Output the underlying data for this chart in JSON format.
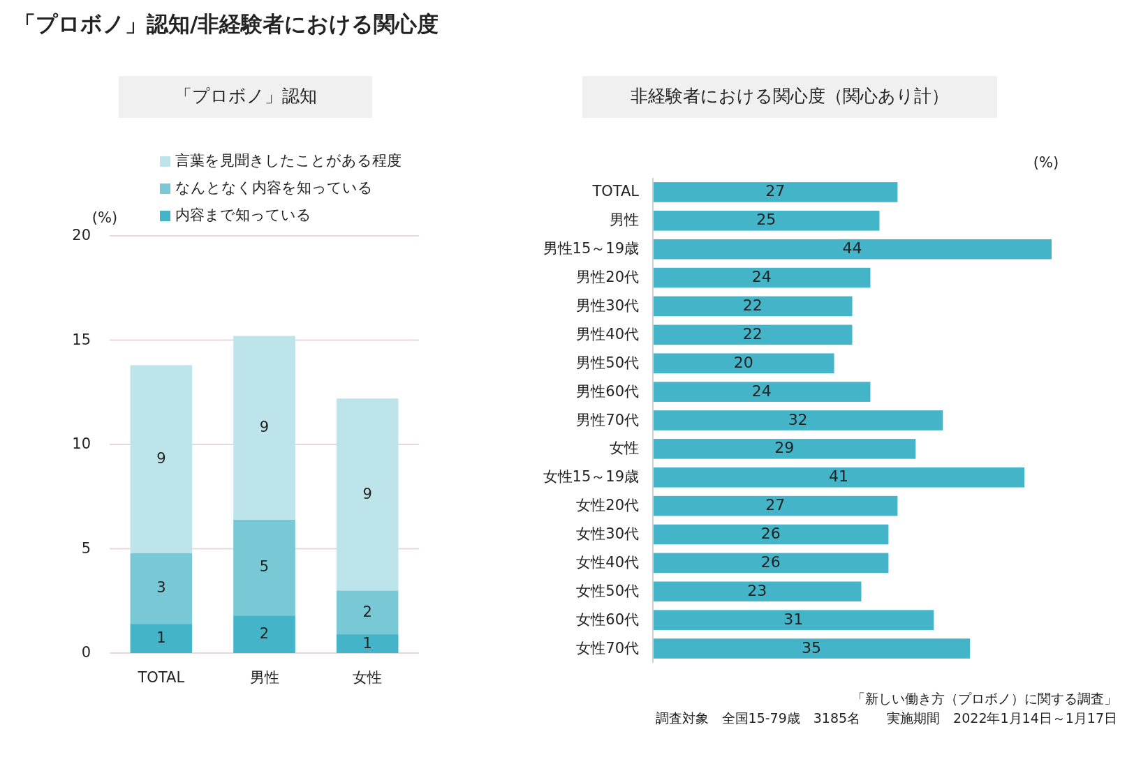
{
  "chart_data": [
    {
      "type": "bar",
      "title": "「プロボノ」認知",
      "ylabel": "(%)",
      "categories": [
        "TOTAL",
        "男性",
        "女性"
      ],
      "stacked": true,
      "ylim": [
        0,
        20
      ],
      "yticks": [
        0,
        5,
        10,
        15,
        20
      ],
      "grid": "y",
      "legend": "top",
      "annotations": [
        "「プロボノ」認知/非経験者における関心度"
      ],
      "series": [
        {
          "name": "内容まで知っている",
          "color": "#44b4c8",
          "values": [
            1.4,
            1.8,
            0.9
          ],
          "value_labels": [
            "1",
            "2",
            "1"
          ]
        },
        {
          "name": "なんとなく内容を知っている",
          "color": "#78c8d6",
          "values": [
            3.4,
            4.6,
            2.1
          ],
          "value_labels": [
            "3",
            "5",
            "2"
          ]
        },
        {
          "name": "言葉を見聞きしたことがある程度",
          "color": "#bde3eb",
          "values": [
            9.0,
            8.8,
            9.2
          ],
          "value_labels": [
            "9",
            "9",
            "9"
          ]
        }
      ]
    },
    {
      "type": "bar",
      "title": "非経験者における関心度（関心あり計）",
      "xlabel": "(%)",
      "orientation": "horizontal",
      "data_labels": true,
      "color": "#44b4c8",
      "categories": [
        "TOTAL",
        "男性",
        "男性15～19歳",
        "男性20代",
        "男性30代",
        "男性40代",
        "男性50代",
        "男性60代",
        "男性70代",
        "女性",
        "女性15～19歳",
        "女性20代",
        "女性30代",
        "女性40代",
        "女性50代",
        "女性60代",
        "女性70代"
      ],
      "values": [
        27,
        25,
        44,
        24,
        22,
        22,
        20,
        24,
        32,
        29,
        41,
        27,
        26,
        26,
        23,
        31,
        35
      ],
      "annotations": [
        "「新しい働き方（プロボノ）に関する調査」",
        "調査対象　全国15-79歳　3185名　　実施期間　2022年1月14日～1月17日"
      ]
    }
  ]
}
